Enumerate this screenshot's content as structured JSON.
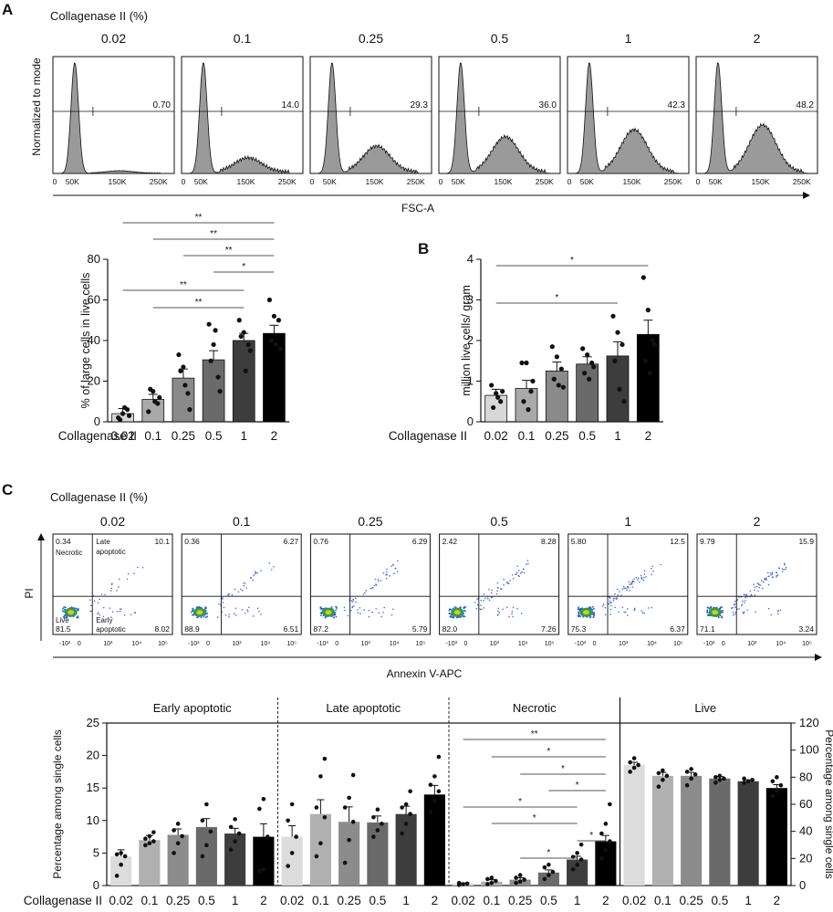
{
  "chart_data": [
    {
      "id": "A_hist",
      "panel": "A",
      "type": "histogram",
      "header": "Collagenase II (%)",
      "ylabel": "Normalized to mode",
      "xlabel": "FSC-A",
      "x_ticks": [
        "0",
        "50K",
        "150K",
        "250K"
      ],
      "concentrations": [
        "0.02",
        "0.1",
        "0.25",
        "0.5",
        "1",
        "2"
      ],
      "gate_values": [
        "0.70",
        "14.0",
        "29.3",
        "36.0",
        "42.3",
        "48.2"
      ],
      "second_peak_height": [
        0.02,
        0.12,
        0.22,
        0.3,
        0.36,
        0.4
      ]
    },
    {
      "id": "A_bar",
      "panel": "A",
      "type": "bar",
      "xlabel": "Collagenase II",
      "ylabel": "% of large cells in live cells",
      "categories": [
        "0.02",
        "0.1",
        "0.25",
        "0.5",
        "1",
        "2"
      ],
      "values": [
        4,
        11,
        21.5,
        30.5,
        40,
        43.5
      ],
      "errors": [
        2.5,
        2.5,
        4.5,
        4.5,
        3.5,
        4
      ],
      "points": [
        [
          2,
          4,
          6,
          1,
          7,
          3
        ],
        [
          5,
          15,
          9,
          16,
          10,
          12
        ],
        [
          33,
          27,
          14,
          25,
          18,
          6
        ],
        [
          48,
          38,
          22,
          30,
          45,
          15
        ],
        [
          50,
          44,
          38,
          42,
          25,
          35
        ],
        [
          60,
          52,
          50,
          40,
          38,
          36
        ]
      ],
      "yticks": [
        0,
        20,
        40,
        60,
        80
      ],
      "ylim": [
        0,
        80
      ],
      "colors": [
        "#d8d8d8",
        "#a9a9a9",
        "#8a8a8a",
        "#6a6a6a",
        "#3d3d3d",
        "#000000"
      ],
      "significance": [
        {
          "from": "0.02",
          "to": "2",
          "label": "**"
        },
        {
          "from": "0.1",
          "to": "2",
          "label": "**"
        },
        {
          "from": "0.25",
          "to": "2",
          "label": "**"
        },
        {
          "from": "0.5",
          "to": "2",
          "label": "*"
        },
        {
          "from": "0.02",
          "to": "1",
          "label": "**"
        },
        {
          "from": "0.1",
          "to": "1",
          "label": "**"
        }
      ]
    },
    {
      "id": "B_bar",
      "panel": "B",
      "type": "bar",
      "xlabel": "Collagenase II",
      "ylabel": "million live cells/ gram",
      "categories": [
        "0.02",
        "0.1",
        "0.25",
        "0.5",
        "1",
        "2"
      ],
      "values": [
        0.65,
        0.82,
        1.25,
        1.42,
        1.62,
        2.15
      ],
      "errors": [
        0.15,
        0.2,
        0.22,
        0.18,
        0.35,
        0.35
      ],
      "points": [
        [
          0.9,
          0.7,
          0.5,
          0.35,
          0.6,
          0.75
        ],
        [
          1.45,
          1.45,
          0.75,
          0.5,
          0.3,
          1.0
        ],
        [
          1.85,
          1.6,
          1.3,
          1.05,
          0.9,
          0.85
        ],
        [
          1.8,
          1.65,
          1.45,
          1.2,
          1.05,
          1.35
        ],
        [
          2.6,
          2.2,
          1.9,
          1.5,
          0.8,
          0.5
        ],
        [
          3.55,
          2.75,
          2.0,
          1.5,
          1.2,
          1.9
        ]
      ],
      "yticks": [
        0,
        1,
        2,
        3,
        4
      ],
      "ylim": [
        0,
        4
      ],
      "colors": [
        "#d8d8d8",
        "#a9a9a9",
        "#8a8a8a",
        "#6a6a6a",
        "#3d3d3d",
        "#000000"
      ],
      "significance": [
        {
          "from": "0.02",
          "to": "2",
          "label": "*"
        },
        {
          "from": "0.02",
          "to": "1",
          "label": "*"
        }
      ]
    },
    {
      "id": "C_scatter",
      "panel": "C",
      "type": "scatter",
      "header": "Collagenase II (%)",
      "ylabel": "PI",
      "xlabel": "Annexin V-APC",
      "concentrations": [
        "0.02",
        "0.1",
        "0.25",
        "0.5",
        "1",
        "2"
      ],
      "quadrant_labels": [
        "Necrotic",
        "Late apoptotic",
        "Live",
        "Early apoptotic"
      ],
      "quadrants": [
        {
          "necrotic": "0.34",
          "late": "10.1",
          "live": "81.5",
          "early": "8.02"
        },
        {
          "necrotic": "0.36",
          "late": "6.27",
          "live": "88.9",
          "early": "6.51"
        },
        {
          "necrotic": "0.76",
          "late": "6.29",
          "live": "87.2",
          "early": "5.79"
        },
        {
          "necrotic": "2.42",
          "late": "8.28",
          "live": "82.0",
          "early": "7.26"
        },
        {
          "necrotic": "5.80",
          "late": "12.5",
          "live": "75.3",
          "early": "6.37"
        },
        {
          "necrotic": "9.79",
          "late": "15.9",
          "live": "71.1",
          "early": "3.24"
        }
      ],
      "axis_ticks": [
        "-10³",
        "0",
        "10³",
        "10⁴",
        "10⁵"
      ]
    },
    {
      "id": "C_bar",
      "panel": "C",
      "type": "bar",
      "xlabel": "Collagenase II",
      "ylabel_left": "Percentage among single cells",
      "ylabel_right": "Percentage among single cells",
      "yticks_left": [
        0,
        5,
        10,
        15,
        20,
        25
      ],
      "ylim_left": [
        0,
        25
      ],
      "yticks_right": [
        0,
        20,
        40,
        60,
        80,
        100,
        120
      ],
      "ylim_right": [
        0,
        120
      ],
      "categories": [
        "0.02",
        "0.1",
        "0.25",
        "0.5",
        "1",
        "2"
      ],
      "colors": [
        "#dcdcdc",
        "#b0b0b0",
        "#8c8c8c",
        "#6a6a6a",
        "#3d3d3d",
        "#000000"
      ],
      "groups": [
        {
          "name": "Early apoptotic",
          "axis": "left",
          "values": [
            4.5,
            7,
            7.8,
            9,
            8,
            7.5
          ],
          "errors": [
            1,
            0.7,
            0.9,
            1.3,
            0.8,
            2
          ],
          "points": [
            [
              1.5,
              3.2,
              4.5,
              4.8,
              5
            ],
            [
              6.2,
              6.5,
              6.8,
              7.2,
              7.6,
              8.2
            ],
            [
              5,
              6.5,
              7.6,
              8.5,
              9.5
            ],
            [
              4.5,
              6.2,
              8.3,
              10,
              12.5
            ],
            [
              5.5,
              6.8,
              8,
              9,
              10.2
            ],
            [
              2.2,
              2.5,
              7.5,
              11.8,
              13.3
            ]
          ]
        },
        {
          "name": "Late apoptotic",
          "axis": "left",
          "values": [
            7.5,
            11,
            9.8,
            9.7,
            11,
            14
          ],
          "errors": [
            1.7,
            2.2,
            2.3,
            1,
            1.2,
            1.4
          ],
          "points": [
            [
              3,
              5,
              7.5,
              10,
              12.5
            ],
            [
              4.5,
              6.5,
              10.5,
              12,
              16.8,
              19.5
            ],
            [
              3.5,
              7,
              9.8,
              12,
              13.5,
              17
            ],
            [
              7.5,
              8.5,
              9.5,
              10.5,
              11.7
            ],
            [
              8,
              9.5,
              11,
              12,
              12.5,
              14.5
            ],
            [
              11.3,
              13,
              14.5,
              15.5,
              16.8,
              19.8
            ]
          ]
        },
        {
          "name": "Necrotic",
          "axis": "left",
          "values": [
            0.3,
            0.6,
            0.9,
            2,
            4,
            6.8
          ],
          "errors": [
            0.1,
            0.3,
            0.3,
            0.4,
            0.5,
            0.9
          ],
          "points": [
            [
              0.1,
              0.2,
              0.3,
              0.4
            ],
            [
              0.2,
              0.4,
              0.7,
              1,
              1.2
            ],
            [
              0.4,
              0.6,
              0.9,
              1.2,
              1.6
            ],
            [
              1,
              1.6,
              2.1,
              2.8,
              3.2
            ],
            [
              2.5,
              3.2,
              4,
              4.4,
              5,
              6.3
            ],
            [
              4.2,
              5.5,
              6.8,
              8,
              9.5,
              12.5
            ]
          ],
          "significance": [
            {
              "from": "0.02",
              "to": "2",
              "label": "**"
            },
            {
              "from": "0.1",
              "to": "2",
              "label": "*"
            },
            {
              "from": "0.25",
              "to": "2",
              "label": "*"
            },
            {
              "from": "0.5",
              "to": "2",
              "label": "*"
            },
            {
              "from": "0.02",
              "to": "1",
              "label": "*"
            },
            {
              "from": "0.1",
              "to": "1",
              "label": "*"
            },
            {
              "from": "1",
              "to": "2",
              "label": "*"
            },
            {
              "from": "0.25",
              "to": "1",
              "label": "*"
            }
          ]
        },
        {
          "name": "Live",
          "axis": "right",
          "values": [
            89,
            81,
            81,
            79,
            77,
            72
          ],
          "errors": [
            2,
            2.5,
            2.5,
            1.5,
            1,
            2.5
          ],
          "points": [
            [
              84,
              87,
              89,
              91,
              94
            ],
            [
              73,
              78,
              81,
              83,
              85
            ],
            [
              74,
              79,
              82,
              84,
              86
            ],
            [
              76,
              78,
              79,
              80,
              81
            ],
            [
              76,
              77,
              78,
              79
            ],
            [
              66,
              70,
              74,
              77,
              80
            ]
          ]
        }
      ]
    }
  ],
  "panel_labels": [
    "A",
    "B",
    "C"
  ]
}
